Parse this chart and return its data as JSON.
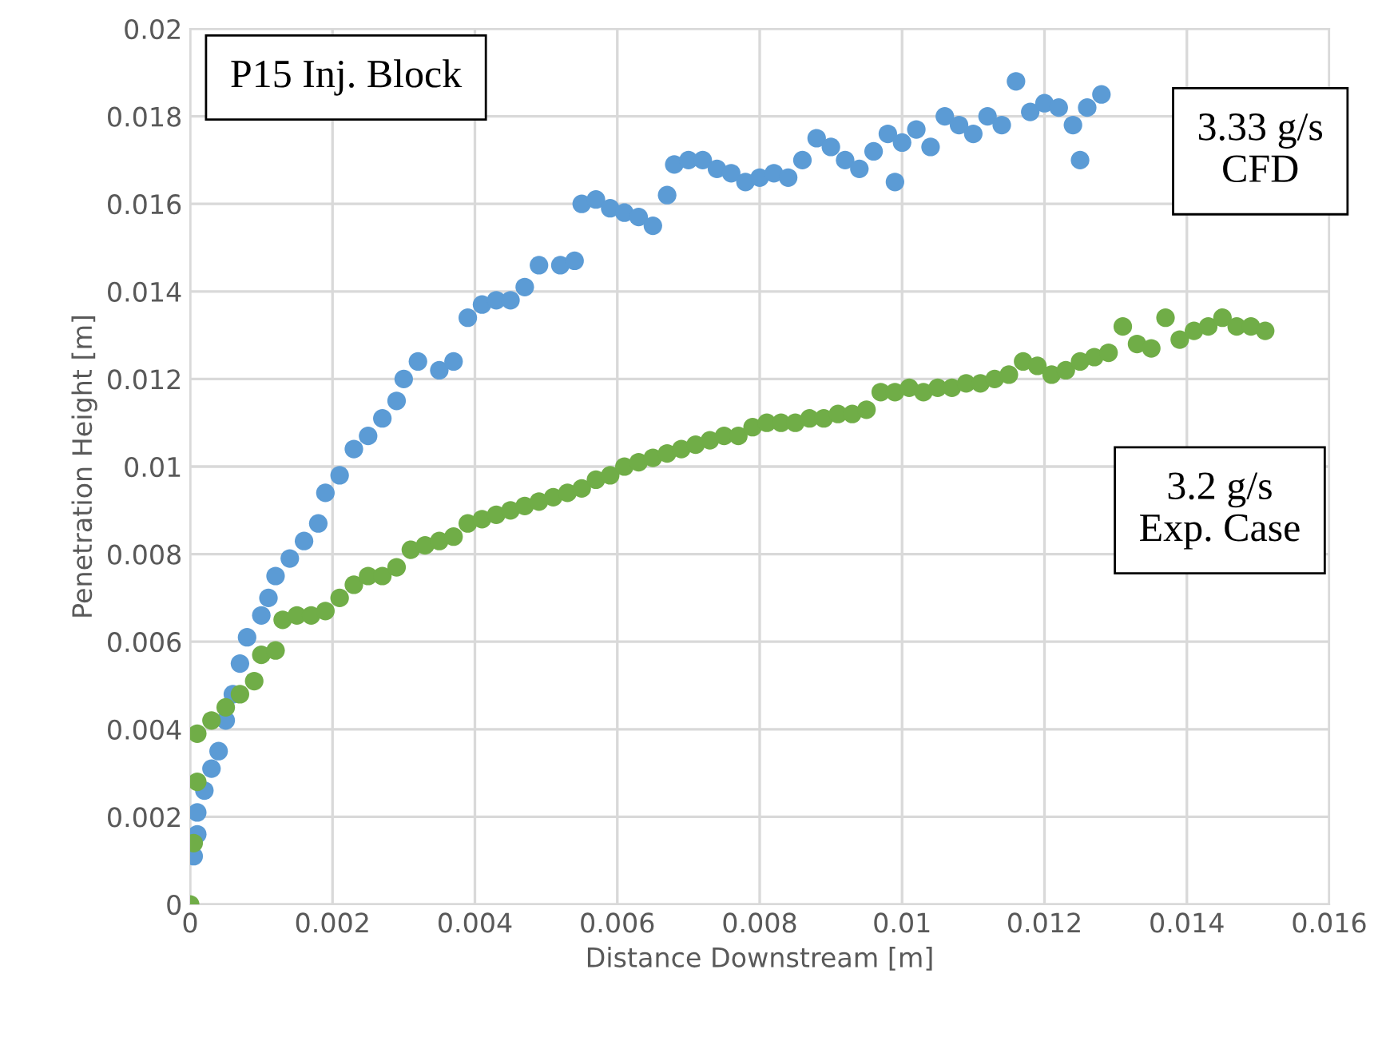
{
  "chart_data": {
    "type": "scatter",
    "xlabel": "Distance Downstream [m]",
    "ylabel": "Penetration Height [m]",
    "annotations": [
      "P15 Inj. Block",
      "3.33 g/s\nCFD",
      "3.2 g/s\nExp. Case"
    ],
    "xlim": [
      0,
      0.016
    ],
    "xticks": [
      {
        "value": 0,
        "label": "0"
      },
      0.002,
      0.004,
      0.006,
      0.008,
      0.01,
      0.012,
      0.014,
      0.016
    ],
    "ylim": [
      0,
      0.02
    ],
    "yticks": [
      {
        "value": 0,
        "label": "0"
      },
      0.002,
      0.004,
      0.006,
      0.008,
      0.01,
      0.012,
      0.014,
      0.016,
      0.018,
      0.02
    ],
    "grid": true,
    "marker": "circle",
    "series": [
      {
        "color": "#5b9bd5",
        "x": [
          5e-05,
          0.0001,
          0.0001,
          0.0002,
          0.0003,
          0.0004,
          0.0005,
          0.0006,
          0.0007,
          0.0008,
          0.001,
          0.0011,
          0.0012,
          0.0014,
          0.0016,
          0.0018,
          0.0019,
          0.0021,
          0.0023,
          0.0025,
          0.0027,
          0.0029,
          0.003,
          0.0032,
          0.0035,
          0.0037,
          0.0039,
          0.0041,
          0.0043,
          0.0045,
          0.0047,
          0.0049,
          0.0052,
          0.0054,
          0.0055,
          0.0057,
          0.0059,
          0.0061,
          0.0063,
          0.0065,
          0.0067,
          0.0068,
          0.007,
          0.0072,
          0.0074,
          0.0076,
          0.0078,
          0.008,
          0.0082,
          0.0084,
          0.0086,
          0.0088,
          0.009,
          0.0092,
          0.0094,
          0.0096,
          0.0098,
          0.0099,
          0.01,
          0.0102,
          0.0104,
          0.0106,
          0.0108,
          0.011,
          0.0112,
          0.0114,
          0.0116,
          0.0118,
          0.012,
          0.0122,
          0.0124,
          0.0125,
          0.0126,
          0.0128
        ],
        "values": [
          0.0011,
          0.0016,
          0.0021,
          0.0026,
          0.0031,
          0.0035,
          0.0042,
          0.0048,
          0.0055,
          0.0061,
          0.0066,
          0.007,
          0.0075,
          0.0079,
          0.0083,
          0.0087,
          0.0094,
          0.0098,
          0.0104,
          0.0107,
          0.0111,
          0.0115,
          0.012,
          0.0124,
          0.0122,
          0.0124,
          0.0134,
          0.0137,
          0.0138,
          0.0138,
          0.0141,
          0.0146,
          0.0146,
          0.0147,
          0.016,
          0.0161,
          0.0159,
          0.0158,
          0.0157,
          0.0155,
          0.0162,
          0.0169,
          0.017,
          0.017,
          0.0168,
          0.0167,
          0.0165,
          0.0166,
          0.0167,
          0.0166,
          0.017,
          0.0175,
          0.0173,
          0.017,
          0.0168,
          0.0172,
          0.0176,
          0.0165,
          0.0174,
          0.0177,
          0.0173,
          0.018,
          0.0178,
          0.0176,
          0.018,
          0.0178,
          0.0188,
          0.0181,
          0.0183,
          0.0182,
          0.0178,
          0.017,
          0.0182,
          0.0185
        ]
      },
      {
        "color": "#70ad47",
        "x": [
          0,
          5e-05,
          0.0001,
          0.0001,
          0.0003,
          0.0005,
          0.0007,
          0.0009,
          0.001,
          0.0012,
          0.0013,
          0.0015,
          0.0017,
          0.0019,
          0.0021,
          0.0023,
          0.0025,
          0.0027,
          0.0029,
          0.0031,
          0.0033,
          0.0035,
          0.0037,
          0.0039,
          0.0041,
          0.0043,
          0.0045,
          0.0047,
          0.0049,
          0.0051,
          0.0053,
          0.0055,
          0.0057,
          0.0059,
          0.0061,
          0.0063,
          0.0065,
          0.0067,
          0.0069,
          0.0071,
          0.0073,
          0.0075,
          0.0077,
          0.0079,
          0.0081,
          0.0083,
          0.0085,
          0.0087,
          0.0089,
          0.0091,
          0.0093,
          0.0095,
          0.0097,
          0.0099,
          0.0101,
          0.0103,
          0.0105,
          0.0107,
          0.0109,
          0.0111,
          0.0113,
          0.0115,
          0.0117,
          0.0119,
          0.0121,
          0.0123,
          0.0125,
          0.0127,
          0.0129,
          0.0131,
          0.0133,
          0.0135,
          0.0137,
          0.0139,
          0.0141,
          0.0143,
          0.0145,
          0.0147,
          0.0149,
          0.0151
        ],
        "values": [
          0,
          0.0014,
          0.0028,
          0.0039,
          0.0042,
          0.0045,
          0.0048,
          0.0051,
          0.0057,
          0.0058,
          0.0065,
          0.0066,
          0.0066,
          0.0067,
          0.007,
          0.0073,
          0.0075,
          0.0075,
          0.0077,
          0.0081,
          0.0082,
          0.0083,
          0.0084,
          0.0087,
          0.0088,
          0.0089,
          0.009,
          0.0091,
          0.0092,
          0.0093,
          0.0094,
          0.0095,
          0.0097,
          0.0098,
          0.01,
          0.0101,
          0.0102,
          0.0103,
          0.0104,
          0.0105,
          0.0106,
          0.0107,
          0.0107,
          0.0109,
          0.011,
          0.011,
          0.011,
          0.0111,
          0.0111,
          0.0112,
          0.0112,
          0.0113,
          0.0117,
          0.0117,
          0.0118,
          0.0117,
          0.0118,
          0.0118,
          0.0119,
          0.0119,
          0.012,
          0.0121,
          0.0124,
          0.0123,
          0.0121,
          0.0122,
          0.0124,
          0.0125,
          0.0126,
          0.0132,
          0.0128,
          0.0127,
          0.0134,
          0.0129,
          0.0131,
          0.0132,
          0.0134,
          0.0132,
          0.0132,
          0.0131
        ]
      }
    ]
  }
}
